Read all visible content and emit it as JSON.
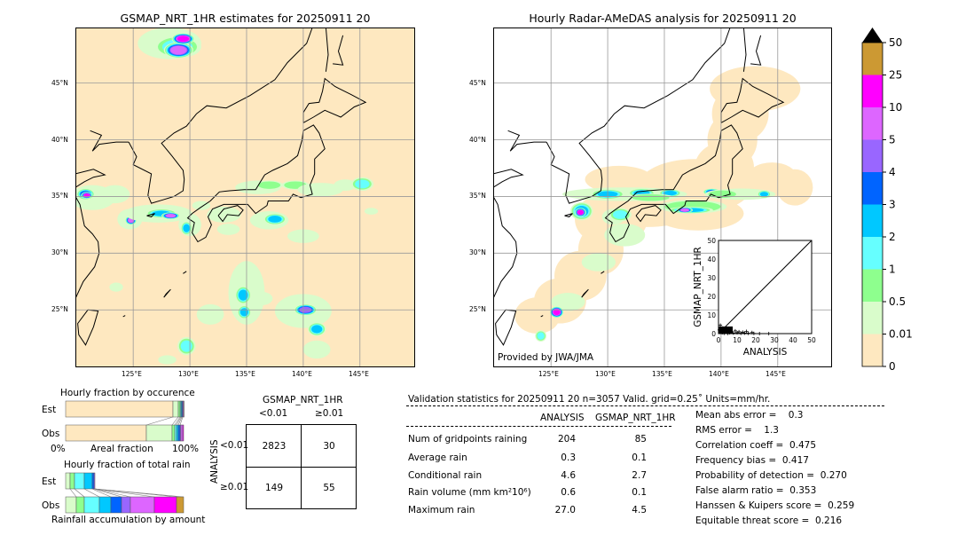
{
  "left_map": {
    "title": "GSMAP_NRT_1HR estimates for 20250911 20",
    "lon_ticks": [
      "125°E",
      "130°E",
      "135°E",
      "140°E",
      "145°E"
    ],
    "lat_ticks": [
      "45°N",
      "40°N",
      "35°N",
      "30°N",
      "25°N"
    ]
  },
  "right_map": {
    "title": "Hourly Radar-AMeDAS analysis for 20250911 20",
    "lon_ticks": [
      "125°E",
      "130°E",
      "135°E",
      "140°E",
      "145°E"
    ],
    "lat_ticks": [
      "45°N",
      "40°N",
      "35°N",
      "30°N",
      "25°N"
    ],
    "credit": "Provided by JWA/JMA",
    "inset": {
      "ylabel": "GSMAP_NRT_1HR",
      "xlabel": "ANALYSIS",
      "ticks": [
        "0",
        "10",
        "20",
        "30",
        "40",
        "50"
      ]
    }
  },
  "colorbar": {
    "labels": [
      "0",
      "0.01",
      "0.5",
      "1",
      "2",
      "3",
      "4",
      "5",
      "10",
      "25",
      "50"
    ],
    "colors": [
      "#fee8c0",
      "#d9fccb",
      "#8eff8e",
      "#66ffff",
      "#00c8ff",
      "#0064ff",
      "#9966ff",
      "#dd66ff",
      "#ff00ff",
      "#cc9933"
    ],
    "extend_color": "#000000"
  },
  "occurrence": {
    "title": "Hourly fraction by occurence",
    "rows": [
      "Est",
      "Obs"
    ],
    "xlabel": "Areal fraction",
    "x_min_label": "0%",
    "x_max_label": "100%"
  },
  "total_rain": {
    "title": "Hourly fraction of total rain",
    "rows": [
      "Est",
      "Obs"
    ],
    "xlabel": "Rainfall accumulation by amount"
  },
  "contingency": {
    "col_title": "GSMAP_NRT_1HR",
    "cols": [
      "<0.01",
      "≥0.01"
    ],
    "row_title": "ANALYSIS",
    "rows": [
      "<0.01",
      "≥0.01"
    ],
    "cells": [
      [
        "2823",
        "30"
      ],
      [
        "149",
        "55"
      ]
    ]
  },
  "stats": {
    "header": "Validation statistics for 20250911 20  n=3057 Valid. grid=0.25˚ Units=mm/hr.",
    "col_analysis": "ANALYSIS",
    "col_gsmap": "GSMAP_NRT_1HR",
    "rows": [
      {
        "label": "Num of gridpoints raining",
        "analysis": "204",
        "gsmap": "85"
      },
      {
        "label": "Average rain",
        "analysis": "0.3",
        "gsmap": "0.1"
      },
      {
        "label": "Conditional rain",
        "analysis": "4.6",
        "gsmap": "2.7"
      },
      {
        "label": "Rain volume (mm km²10⁶)",
        "analysis": "0.6",
        "gsmap": "0.1"
      },
      {
        "label": "Maximum rain",
        "analysis": "27.0",
        "gsmap": "4.5"
      }
    ],
    "scores": [
      "Mean abs error =    0.3",
      "RMS error =    1.3",
      "Correlation coeff =  0.475",
      "Frequency bias =  0.417",
      "Probability of detection =  0.270",
      "False alarm ratio =  0.353",
      "Hanssen & Kuipers score =  0.259",
      "Equitable threat score =  0.216"
    ]
  },
  "chart_data": [
    {
      "type": "bar",
      "title": "Hourly fraction by occurence",
      "categories": [
        "Est",
        "Obs"
      ],
      "xlabel": "Areal fraction",
      "stacked_fraction_percent": {
        "Est": [
          91,
          4.5,
          1.5,
          1,
          1,
          0.5,
          0.3,
          0.1,
          0.1,
          0
        ],
        "Obs": [
          68,
          21.5,
          2,
          2,
          2,
          1.5,
          1,
          1,
          0.7,
          0.3
        ]
      }
    },
    {
      "type": "bar",
      "title": "Hourly fraction of total rain",
      "categories": [
        "Est",
        "Obs"
      ],
      "xlabel": "Rainfall accumulation by amount",
      "stacked_fraction_relative_to_obs_percent": {
        "Est": [
          4,
          4,
          8,
          7,
          1.5,
          0.5,
          0,
          0,
          0,
          0
        ],
        "Obs": [
          9,
          7,
          13,
          10,
          9,
          7.5,
          20,
          19,
          5.5,
          0
        ]
      }
    },
    {
      "type": "scatter",
      "xlabel": "ANALYSIS",
      "ylabel": "GSMAP_NRT_1HR",
      "xlim": [
        0,
        50
      ],
      "ylim": [
        0,
        50
      ]
    }
  ]
}
